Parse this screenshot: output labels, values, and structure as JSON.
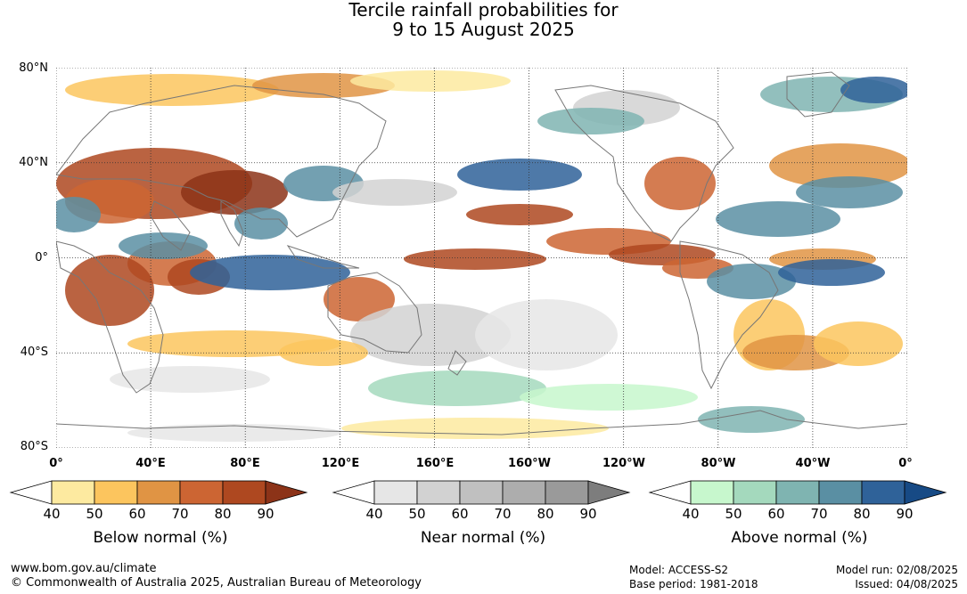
{
  "title": {
    "line1": "Tercile rainfall probabilities for",
    "line2": "9 to 15 August 2025"
  },
  "map": {
    "lat_labels": [
      "80°N",
      "40°N",
      "0°",
      "40°S",
      "80°S"
    ],
    "lon_labels": [
      "0°",
      "40°E",
      "80°E",
      "120°E",
      "160°E",
      "160°W",
      "120°W",
      "80°W",
      "40°W",
      "0°"
    ],
    "colors": {
      "ocean_neutral": "#ffffff",
      "coastline": "#777777",
      "grid": "#333333"
    }
  },
  "legends": [
    {
      "title": "Below normal (%)",
      "ticks": [
        "40",
        "50",
        "60",
        "70",
        "80",
        "90"
      ],
      "colors": [
        "#ffffff",
        "#fdeaa0",
        "#fcc55e",
        "#e09444",
        "#cc6533",
        "#ae4820",
        "#8c3318"
      ]
    },
    {
      "title": "Near normal (%)",
      "ticks": [
        "40",
        "50",
        "60",
        "70",
        "80",
        "90"
      ],
      "colors": [
        "#ffffff",
        "#e6e6e6",
        "#d2d2d2",
        "#c0c0c0",
        "#adadad",
        "#9a9a9a",
        "#7d7d7d"
      ]
    },
    {
      "title": "Above normal (%)",
      "ticks": [
        "40",
        "50",
        "60",
        "70",
        "80",
        "90"
      ],
      "colors": [
        "#ffffff",
        "#c7f7cd",
        "#a4d9bd",
        "#7fb4b1",
        "#5a8fa3",
        "#2f6299",
        "#174a85"
      ]
    }
  ],
  "footer": {
    "url": "www.bom.gov.au/climate",
    "copyright": "© Commonwealth of Australia 2025, Australian Bureau of Meteorology",
    "model": "Model: ACCESS-S2",
    "base_period": "Base period: 1981-2018",
    "model_run": "Model run: 02/08/2025",
    "issued": "Issued: 04/08/2025"
  }
}
